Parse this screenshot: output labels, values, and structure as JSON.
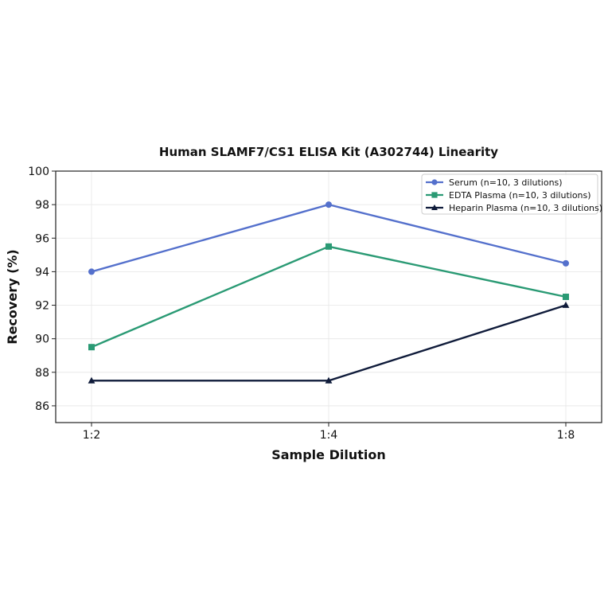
{
  "chart_data": {
    "type": "line",
    "title": "Human SLAMF7/CS1 ELISA Kit (A302744) Linearity",
    "xlabel": "Sample Dilution",
    "ylabel": "Recovery (%)",
    "categories": [
      "1:2",
      "1:4",
      "1:8"
    ],
    "ylim": [
      85,
      100
    ],
    "yticks": [
      86,
      88,
      90,
      92,
      94,
      96,
      98,
      100
    ],
    "grid": true,
    "legend_position": "top-right",
    "series": [
      {
        "name": "Serum (n=10, 3 dilutions)",
        "values": [
          94,
          98,
          94.5
        ],
        "color": "#5470cc",
        "marker": "circle"
      },
      {
        "name": "EDTA Plasma (n=10, 3 dilutions)",
        "values": [
          89.5,
          95.5,
          92.5
        ],
        "color": "#2a9a74",
        "marker": "square"
      },
      {
        "name": "Heparin Plasma (n=10, 3 dilutions)",
        "values": [
          87.5,
          87.5,
          92
        ],
        "color": "#0f1b3a",
        "marker": "triangle"
      }
    ]
  }
}
